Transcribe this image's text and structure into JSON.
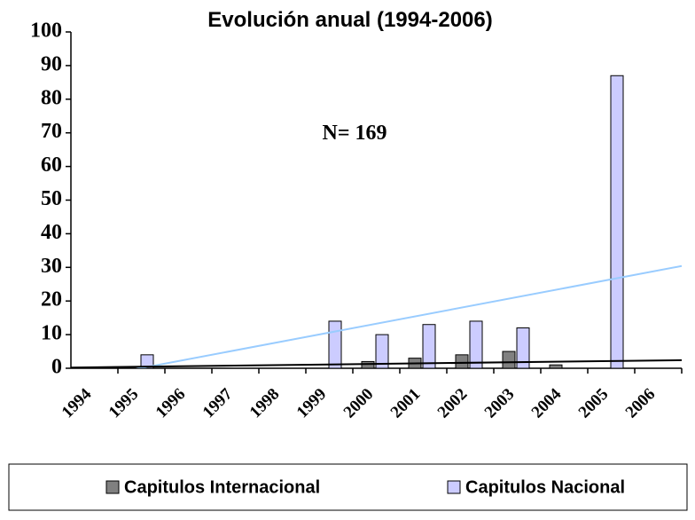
{
  "chart_data": {
    "type": "bar",
    "title": "Evolución anual (1994-2006)",
    "annotation": "N= 169",
    "categories": [
      "1994",
      "1995",
      "1996",
      "1997",
      "1998",
      "1999",
      "2000",
      "2001",
      "2002",
      "2003",
      "2004",
      "2005",
      "2006"
    ],
    "series": [
      {
        "name": "Capitulos Internacional",
        "color": "#808080",
        "values": [
          0,
          0,
          0,
          0,
          0,
          0,
          2,
          3,
          4,
          5,
          1,
          0,
          0
        ]
      },
      {
        "name": "Capitulos Nacional",
        "color": "#ccccff",
        "values": [
          0,
          4,
          0,
          0,
          0,
          14,
          10,
          13,
          14,
          12,
          0,
          87,
          0
        ]
      }
    ],
    "trendlines": [
      {
        "color": "#99ccff",
        "values": [
          -3.9,
          30.4
        ]
      },
      {
        "color": "#000000",
        "values": [
          0.2,
          2.4
        ]
      }
    ],
    "ylim": [
      0,
      100
    ],
    "yticks": [
      0,
      10,
      20,
      30,
      40,
      50,
      60,
      70,
      80,
      90,
      100
    ],
    "legend": "bottom"
  }
}
